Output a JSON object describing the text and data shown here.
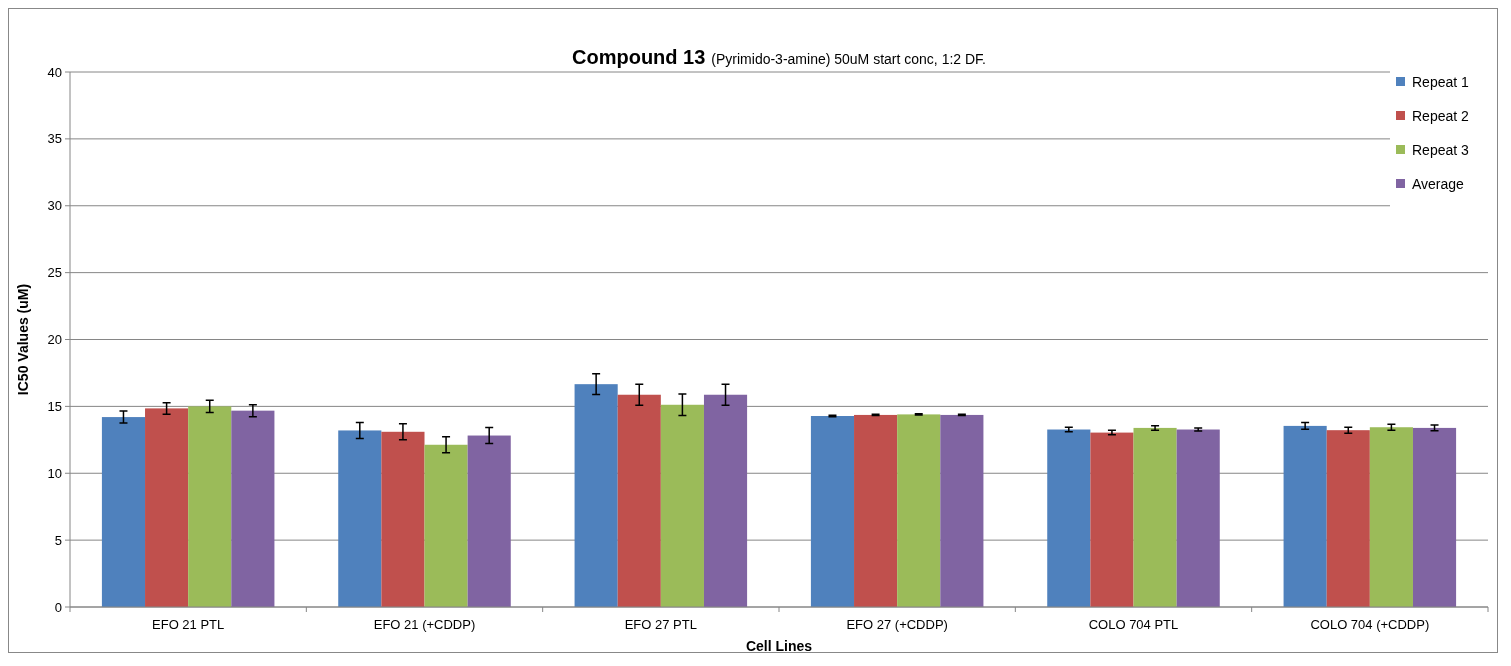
{
  "chart_data": {
    "type": "bar",
    "title": "Compound 13",
    "subtitle": "(Pyrimido-3-amine) 50uM start conc, 1:2 DF.",
    "xlabel": "Cell Lines",
    "ylabel": "IC50 Values (uM)",
    "categories": [
      "EFO 21 PTL",
      "EFO 21 (+CDDP)",
      "EFO 27 PTL",
      "EFO 27 (+CDDP)",
      "COLO 704 PTL",
      "COLO 704 (+CDDP)"
    ],
    "series": [
      {
        "name": "Repeat 1",
        "color": "#4f81bd",
        "values": [
          14.2,
          13.2,
          16.66,
          14.28,
          13.27,
          13.54
        ],
        "errors": [
          0.45,
          0.6,
          0.77,
          0.05,
          0.17,
          0.25
        ]
      },
      {
        "name": "Repeat 2",
        "color": "#c0504d",
        "values": [
          14.85,
          13.1,
          15.87,
          14.36,
          13.04,
          13.22
        ],
        "errors": [
          0.43,
          0.6,
          0.78,
          0.05,
          0.17,
          0.22
        ]
      },
      {
        "name": "Repeat 3",
        "color": "#9bbb59",
        "values": [
          15.0,
          12.13,
          15.12,
          14.4,
          13.39,
          13.44
        ],
        "errors": [
          0.45,
          0.6,
          0.8,
          0.05,
          0.17,
          0.22
        ]
      },
      {
        "name": "Average",
        "color": "#8064a2",
        "values": [
          14.68,
          12.82,
          15.87,
          14.36,
          13.27,
          13.39
        ],
        "errors": [
          0.45,
          0.6,
          0.78,
          0.05,
          0.12,
          0.22
        ]
      }
    ],
    "ylim": [
      0,
      40
    ],
    "yticks": [
      0,
      5,
      10,
      15,
      20,
      25,
      30,
      35,
      40
    ],
    "grid": "y",
    "legend": "top right"
  }
}
